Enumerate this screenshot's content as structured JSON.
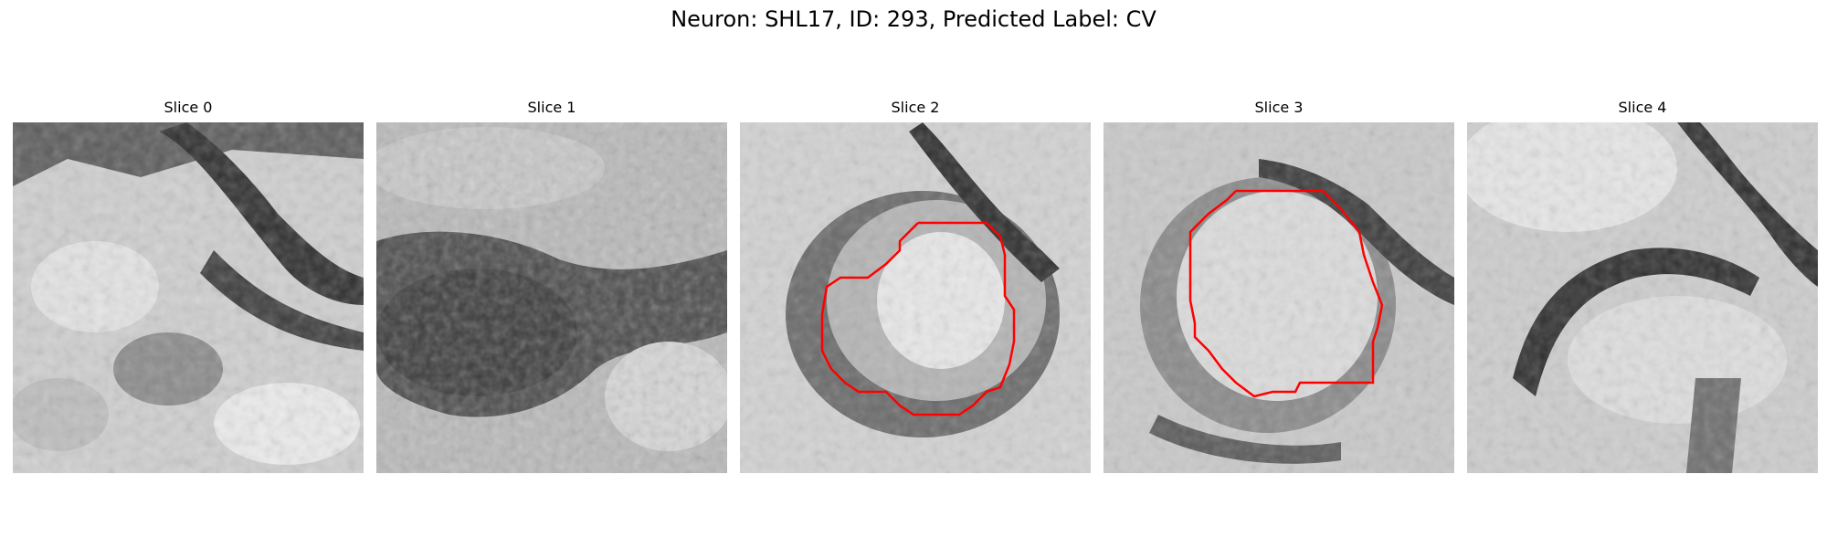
{
  "figure": {
    "title": "Neuron: SHL17, ID: 293, Predicted Label: CV",
    "contour_color": "#ff0000"
  },
  "panels": [
    {
      "title": "Slice 0"
    },
    {
      "title": "Slice 1"
    },
    {
      "title": "Slice 2"
    },
    {
      "title": "Slice 3"
    },
    {
      "title": "Slice 4"
    }
  ]
}
